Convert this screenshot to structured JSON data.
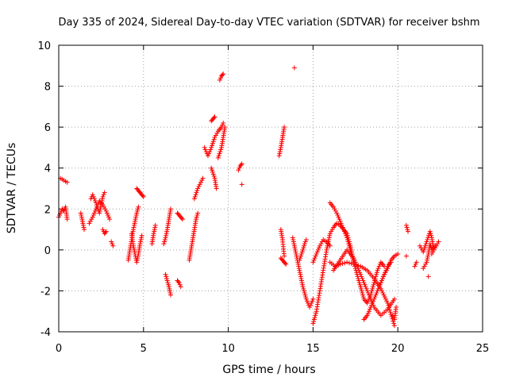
{
  "chart_data": {
    "type": "scatter",
    "title": "Day 335 of 2024, Sidereal Day-to-day VTEC variation (SDTVAR) for receiver bshm",
    "xlabel": "GPS time / hours",
    "ylabel": "SDTVAR / TECUs",
    "xlim": [
      0,
      25
    ],
    "ylim": [
      -4,
      10
    ],
    "xticks": [
      0,
      5,
      10,
      15,
      20,
      25
    ],
    "yticks": [
      -4,
      -2,
      0,
      2,
      4,
      6,
      8,
      10
    ],
    "grid": true,
    "marker": "plus",
    "color": "#ff0000",
    "segments": [
      {
        "x": [
          0.0,
          0.1,
          0.2,
          0.3,
          0.4,
          0.5
        ],
        "y": [
          1.6,
          1.8,
          2.0,
          1.9,
          2.1,
          1.5
        ]
      },
      {
        "x": [
          0.1,
          0.3,
          0.5
        ],
        "y": [
          3.5,
          3.4,
          3.3
        ]
      },
      {
        "x": [
          1.3,
          1.4,
          1.5
        ],
        "y": [
          1.8,
          1.4,
          1.0
        ]
      },
      {
        "x": [
          1.9,
          2.0,
          2.1,
          2.2,
          2.3,
          2.4,
          2.5,
          2.6,
          2.7
        ],
        "y": [
          2.5,
          2.7,
          2.5,
          2.3,
          2.0,
          1.8,
          2.2,
          2.6,
          2.8
        ]
      },
      {
        "x": [
          1.8,
          2.0,
          2.2,
          2.4,
          2.6,
          2.8,
          3.0
        ],
        "y": [
          1.3,
          1.6,
          2.0,
          2.4,
          2.2,
          1.9,
          1.5
        ]
      },
      {
        "x": [
          2.6,
          2.7,
          2.8
        ],
        "y": [
          1.0,
          0.8,
          0.9
        ]
      },
      {
        "x": [
          3.1,
          3.2
        ],
        "y": [
          0.4,
          0.2
        ]
      },
      {
        "x": [
          4.1,
          4.2,
          4.3,
          4.4,
          4.5,
          4.6,
          4.7
        ],
        "y": [
          -0.5,
          0.0,
          0.5,
          1.0,
          1.4,
          1.8,
          2.1
        ]
      },
      {
        "x": [
          4.3,
          4.4,
          4.5,
          4.6,
          4.7,
          4.8,
          4.9
        ],
        "y": [
          0.8,
          0.2,
          -0.2,
          -0.6,
          -0.2,
          0.3,
          0.7
        ]
      },
      {
        "x": [
          4.6,
          4.7,
          4.8,
          4.9,
          5.0
        ],
        "y": [
          3.0,
          2.9,
          2.8,
          2.7,
          2.6
        ]
      },
      {
        "x": [
          5.5,
          5.6,
          5.7
        ],
        "y": [
          0.3,
          0.8,
          1.2
        ]
      },
      {
        "x": [
          6.2,
          6.3,
          6.4,
          6.5,
          6.6
        ],
        "y": [
          0.3,
          0.6,
          1.0,
          1.5,
          2.0
        ]
      },
      {
        "x": [
          6.3,
          6.4,
          6.5,
          6.6
        ],
        "y": [
          -1.2,
          -1.5,
          -1.8,
          -2.2
        ]
      },
      {
        "x": [
          7.0,
          7.1,
          7.2,
          7.3
        ],
        "y": [
          1.8,
          1.7,
          1.6,
          1.5
        ]
      },
      {
        "x": [
          7.0,
          7.1,
          7.2
        ],
        "y": [
          -1.5,
          -1.6,
          -1.8
        ]
      },
      {
        "x": [
          7.7,
          7.8,
          7.9,
          8.0,
          8.1,
          8.2
        ],
        "y": [
          -0.5,
          0.0,
          0.5,
          1.0,
          1.5,
          1.8
        ]
      },
      {
        "x": [
          8.0,
          8.2,
          8.5
        ],
        "y": [
          2.5,
          3.0,
          3.5
        ]
      },
      {
        "x": [
          8.6,
          8.8,
          9.0,
          9.2,
          9.4,
          9.6,
          9.7
        ],
        "y": [
          5.0,
          4.6,
          5.0,
          5.5,
          5.8,
          6.0,
          6.2
        ]
      },
      {
        "x": [
          9.0,
          9.2,
          9.3
        ],
        "y": [
          4.0,
          3.5,
          3.0
        ]
      },
      {
        "x": [
          9.4,
          9.6,
          9.7,
          9.8
        ],
        "y": [
          4.5,
          5.0,
          5.5,
          6.0
        ]
      },
      {
        "x": [
          9.0,
          9.1,
          9.2
        ],
        "y": [
          6.3,
          6.4,
          6.5
        ]
      },
      {
        "x": [
          9.5,
          9.6,
          9.7
        ],
        "y": [
          8.3,
          8.5,
          8.6
        ]
      },
      {
        "x": [
          10.6,
          10.7,
          10.8
        ],
        "y": [
          3.9,
          4.1,
          4.2
        ]
      },
      {
        "x": [
          10.8
        ],
        "y": [
          3.2
        ]
      },
      {
        "x": [
          13.0,
          13.1,
          13.2,
          13.3
        ],
        "y": [
          4.6,
          5.0,
          5.5,
          6.0
        ]
      },
      {
        "x": [
          13.1,
          13.2,
          13.3
        ],
        "y": [
          1.0,
          0.5,
          -0.3
        ]
      },
      {
        "x": [
          13.1,
          13.2,
          13.3,
          13.4
        ],
        "y": [
          -0.4,
          -0.5,
          -0.6,
          -0.7
        ]
      },
      {
        "x": [
          13.9
        ],
        "y": [
          8.9
        ]
      },
      {
        "x": [
          13.8,
          14.0,
          14.2,
          14.4,
          14.6,
          14.8,
          15.0
        ],
        "y": [
          0.6,
          -0.2,
          -1.0,
          -1.8,
          -2.4,
          -2.8,
          -2.4
        ]
      },
      {
        "x": [
          14.2,
          14.4,
          14.5,
          14.6
        ],
        "y": [
          -0.5,
          0.0,
          0.3,
          0.5
        ]
      },
      {
        "x": [
          15.0,
          15.2,
          15.4,
          15.6,
          15.8,
          16.0,
          16.2,
          16.4,
          16.6,
          16.8,
          17.0,
          17.2,
          17.4
        ],
        "y": [
          -3.6,
          -3.0,
          -2.0,
          -1.0,
          0.0,
          0.8,
          1.1,
          1.3,
          1.2,
          1.0,
          0.8,
          0.2,
          -0.6
        ]
      },
      {
        "x": [
          15.0,
          15.2,
          15.4,
          15.6,
          15.8,
          16.0
        ],
        "y": [
          -0.6,
          -0.2,
          0.2,
          0.5,
          0.4,
          0.2
        ]
      },
      {
        "x": [
          16.0,
          16.2,
          16.4,
          16.6,
          16.8,
          17.0,
          17.2,
          17.4,
          17.6,
          17.8,
          18.0,
          18.2,
          18.4,
          18.6,
          18.8,
          19.0,
          19.2
        ],
        "y": [
          2.3,
          2.1,
          1.8,
          1.4,
          1.0,
          0.6,
          0.0,
          -0.6,
          -1.2,
          -1.8,
          -2.4,
          -2.6,
          -2.2,
          -1.6,
          -1.0,
          -0.6,
          -0.8
        ]
      },
      {
        "x": [
          16.0,
          16.3,
          16.6,
          17.0,
          17.4,
          17.8,
          18.2,
          18.6,
          19.0,
          19.4,
          19.8
        ],
        "y": [
          -0.6,
          -0.8,
          -0.7,
          -0.6,
          -0.7,
          -0.8,
          -1.0,
          -1.4,
          -1.9,
          -2.6,
          -3.7
        ]
      },
      {
        "x": [
          16.2,
          16.6,
          17.0,
          17.4,
          17.8,
          18.2,
          18.6,
          19.0,
          19.4,
          19.8
        ],
        "y": [
          -1.0,
          -0.5,
          0.0,
          -0.4,
          -1.2,
          -2.0,
          -2.8,
          -3.2,
          -2.9,
          -2.4
        ]
      },
      {
        "x": [
          18.0,
          18.2,
          18.4,
          18.6,
          18.8,
          19.0,
          19.2,
          19.4,
          19.6
        ],
        "y": [
          -3.4,
          -3.2,
          -2.8,
          -2.4,
          -2.0,
          -1.6,
          -1.2,
          -0.8,
          -0.6
        ]
      },
      {
        "x": [
          19.0,
          19.2,
          19.4,
          19.6,
          19.8,
          20.0
        ],
        "y": [
          -1.6,
          -1.2,
          -0.9,
          -0.5,
          -0.3,
          -0.2
        ]
      },
      {
        "x": [
          19.7,
          19.8,
          19.9
        ],
        "y": [
          -3.2,
          -3.4,
          -2.8
        ]
      },
      {
        "x": [
          20.5,
          20.6
        ],
        "y": [
          1.2,
          0.9
        ]
      },
      {
        "x": [
          20.5
        ],
        "y": [
          -0.3
        ]
      },
      {
        "x": [
          21.0,
          21.1
        ],
        "y": [
          -0.8,
          -0.6
        ]
      },
      {
        "x": [
          21.3,
          21.5,
          21.7,
          21.9,
          22.0,
          22.1
        ],
        "y": [
          0.2,
          -0.1,
          0.4,
          0.9,
          0.6,
          0.1
        ]
      },
      {
        "x": [
          21.5,
          21.7,
          21.8,
          21.9,
          22.0,
          22.2
        ],
        "y": [
          -0.9,
          -0.6,
          -0.2,
          0.3,
          0.0,
          0.2
        ]
      },
      {
        "x": [
          21.8
        ],
        "y": [
          -1.3
        ]
      },
      {
        "x": [
          22.0,
          22.2,
          22.4
        ],
        "y": [
          -0.2,
          0.1,
          0.4
        ]
      }
    ]
  }
}
